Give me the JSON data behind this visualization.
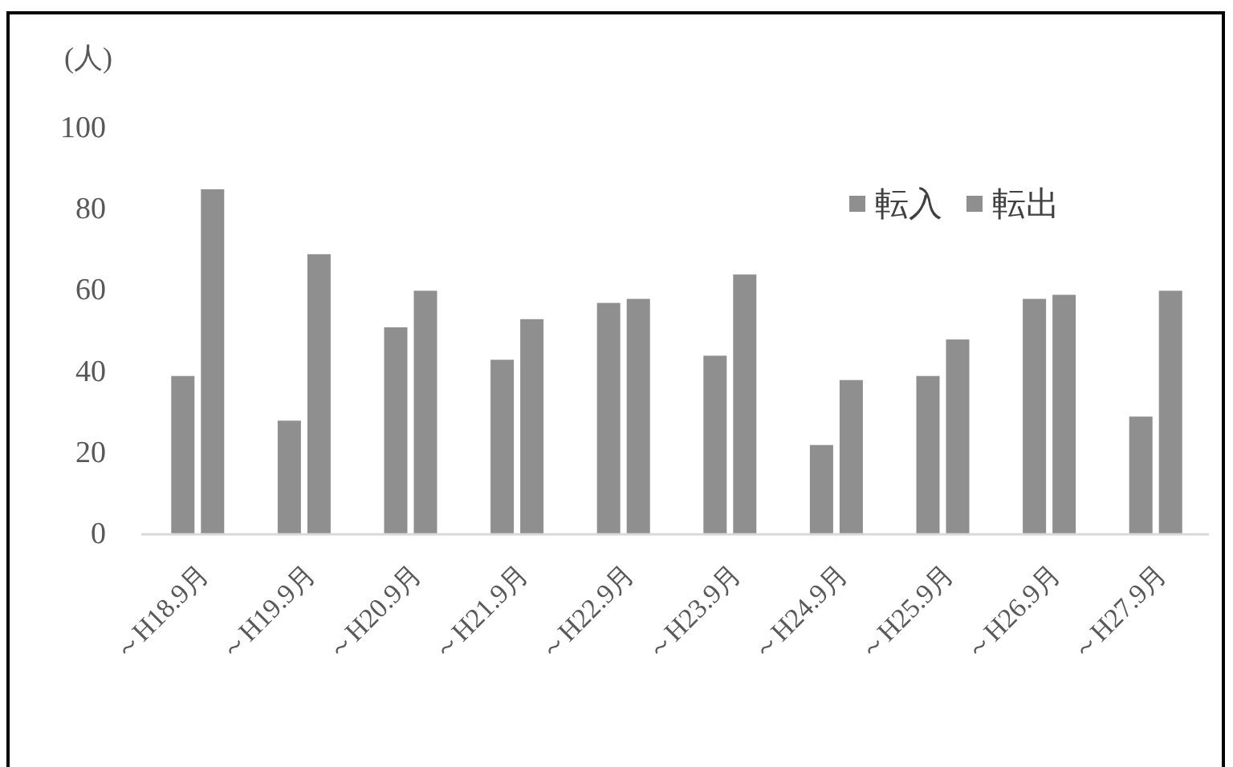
{
  "chart_data": {
    "type": "bar",
    "ylabel": "(人)",
    "categories": [
      "～H18.9月",
      "～H19.9月",
      "～H20.9月",
      "～H21.9月",
      "～H22.9月",
      "～H23.9月",
      "～H24.9月",
      "～H25.9月",
      "～H26.9月",
      "～H27.9月"
    ],
    "series": [
      {
        "name": "転入",
        "color": "#8f8f8f",
        "values": [
          39,
          28,
          51,
          43,
          57,
          44,
          22,
          39,
          58,
          29
        ]
      },
      {
        "name": "転出",
        "color": "#8f8f8f",
        "values": [
          85,
          69,
          60,
          53,
          58,
          64,
          38,
          48,
          59,
          60
        ]
      }
    ],
    "ylim": [
      0,
      100
    ],
    "yticks": [
      0,
      20,
      40,
      60,
      80,
      100
    ],
    "legend": "top right"
  }
}
